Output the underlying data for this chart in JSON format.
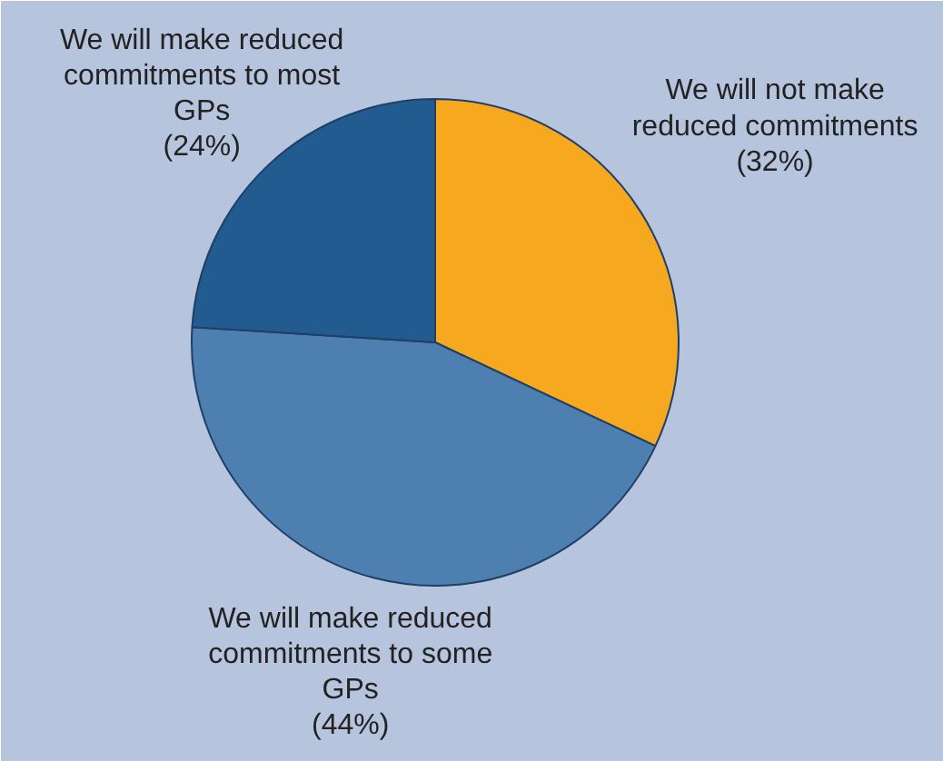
{
  "chart_data": {
    "type": "pie",
    "categories": [
      "We will not make reduced commitments",
      "We will make reduced commitments to some GPs",
      "We will make reduced commitments to most GPs"
    ],
    "values": [
      32,
      44,
      24
    ],
    "colors": [
      "#f6a81e",
      "#4e7fb1",
      "#225b8f"
    ],
    "value_labels": [
      "(32%)",
      "(44%)",
      "(24%)"
    ],
    "legend": false
  }
}
